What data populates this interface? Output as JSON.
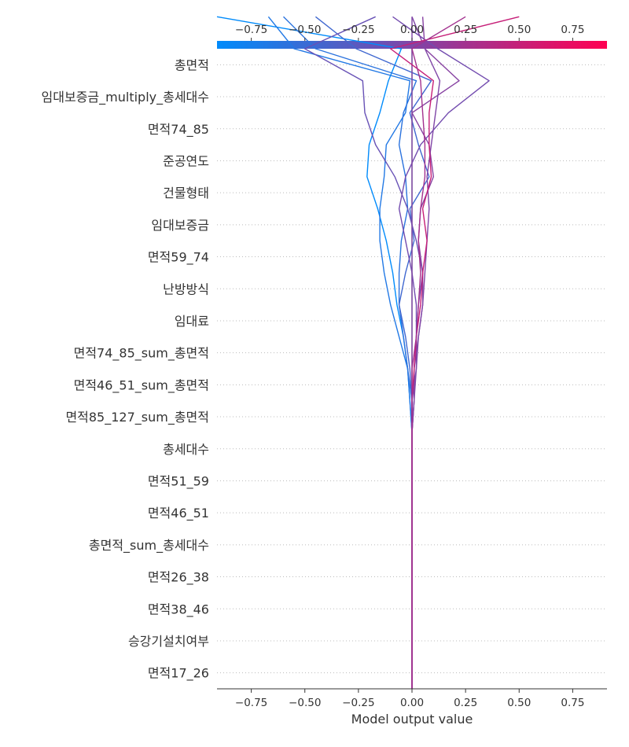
{
  "chart_data": {
    "type": "line",
    "subtype": "shap-decision-plot",
    "xlabel": "Model output value",
    "xlim": [
      -0.91,
      0.91
    ],
    "x_ticks": [
      -0.75,
      -0.5,
      -0.25,
      0.0,
      0.25,
      0.5,
      0.75
    ],
    "x_tick_labels": [
      "−0.75",
      "−0.50",
      "−0.25",
      "0.00",
      "0.25",
      "0.50",
      "0.75"
    ],
    "base_value": 0.0,
    "colorbar": {
      "min": -0.91,
      "max": 0.91,
      "colors": [
        "#008bfb",
        "#ff0052"
      ]
    },
    "features": [
      "총면적",
      "임대보증금_multiply_총세대수",
      "면적74_85",
      "준공연도",
      "건물형태",
      "임대보증금",
      "면적59_74",
      "난방방식",
      "임대료",
      "면적74_85_sum_총면적",
      "면적46_51_sum_총면적",
      "면적85_127_sum_총면적",
      "총세대수",
      "면적51_59",
      "면적46_51",
      "총면적_sum_총세대수",
      "면적26_38",
      "면적38_46",
      "승강기설치여부",
      "면적17_26"
    ],
    "series_note": "Each series lists cumulative model output from the bottom feature (면적17_26) boundary upward to the top (final prediction).",
    "series": [
      {
        "values": [
          0,
          0,
          0,
          0,
          0,
          0,
          0,
          0,
          0,
          -0.01,
          -0.02,
          -0.04,
          -0.07,
          -0.09,
          -0.12,
          -0.16,
          -0.21,
          -0.2,
          -0.15,
          -0.11,
          -0.05,
          -0.91
        ]
      },
      {
        "values": [
          0,
          0,
          0,
          0,
          0,
          0,
          0,
          0,
          0,
          -0.01,
          -0.02,
          -0.06,
          -0.1,
          -0.13,
          -0.15,
          -0.15,
          -0.13,
          -0.12,
          -0.03,
          -0.01,
          -0.55,
          -0.67
        ]
      },
      {
        "values": [
          0,
          0,
          0,
          0,
          0,
          0,
          0,
          0,
          0,
          0,
          -0.02,
          -0.04,
          -0.06,
          -0.06,
          -0.05,
          -0.02,
          -0.03,
          -0.06,
          -0.04,
          0.02,
          -0.45,
          -0.6
        ]
      },
      {
        "values": [
          0,
          0,
          0,
          0,
          0,
          0,
          0,
          0,
          0,
          0,
          -0.01,
          -0.03,
          -0.06,
          -0.03,
          0.01,
          -0.01,
          0.08,
          0.03,
          -0.01,
          0.09,
          -0.26,
          -0.45
        ]
      },
      {
        "values": [
          0,
          0,
          0,
          0,
          0,
          0,
          0,
          0,
          0,
          0.01,
          0.01,
          0.02,
          0.03,
          0.05,
          0.02,
          -0.02,
          -0.08,
          -0.17,
          -0.22,
          -0.23,
          -0.5,
          -0.17
        ]
      },
      {
        "values": [
          0,
          0,
          0,
          0,
          0,
          0,
          0,
          0,
          0,
          0,
          0.02,
          0.02,
          0.02,
          0.0,
          -0.03,
          -0.06,
          -0.03,
          0.04,
          0.17,
          0.36,
          0.12,
          -0.09
        ]
      },
      {
        "values": [
          0,
          0,
          0,
          0,
          0,
          0,
          0,
          0,
          0,
          0.01,
          0.01,
          0.03,
          0.05,
          0.05,
          0.03,
          0.04,
          0.1,
          0.08,
          0.0,
          0.22,
          0.06,
          0.05
        ]
      },
      {
        "values": [
          0,
          0,
          0,
          0,
          0,
          0,
          0,
          0,
          0,
          0,
          0,
          0,
          0,
          0,
          0,
          0,
          0,
          0,
          0,
          0,
          0,
          0.0
        ]
      },
      {
        "values": [
          0,
          0,
          0,
          0,
          0,
          0,
          0,
          0,
          0,
          0.01,
          0.02,
          0.03,
          0.05,
          0.06,
          0.07,
          0.08,
          0.07,
          0.09,
          0.11,
          0.13,
          0.06,
          0.0
        ]
      },
      {
        "values": [
          0,
          0,
          0,
          0,
          0,
          0,
          0,
          0,
          0,
          0,
          0.01,
          0.02,
          0.04,
          0.05,
          0.07,
          0.05,
          0.09,
          0.08,
          0.08,
          0.1,
          -0.1,
          0.5
        ]
      },
      {
        "values": [
          0,
          0,
          0,
          0,
          0,
          0,
          0,
          0,
          0,
          0,
          0,
          0.02,
          0.03,
          0.04,
          0.03,
          0.04,
          0.06,
          0.06,
          0.05,
          0.04,
          0.0,
          0.25
        ]
      }
    ]
  }
}
